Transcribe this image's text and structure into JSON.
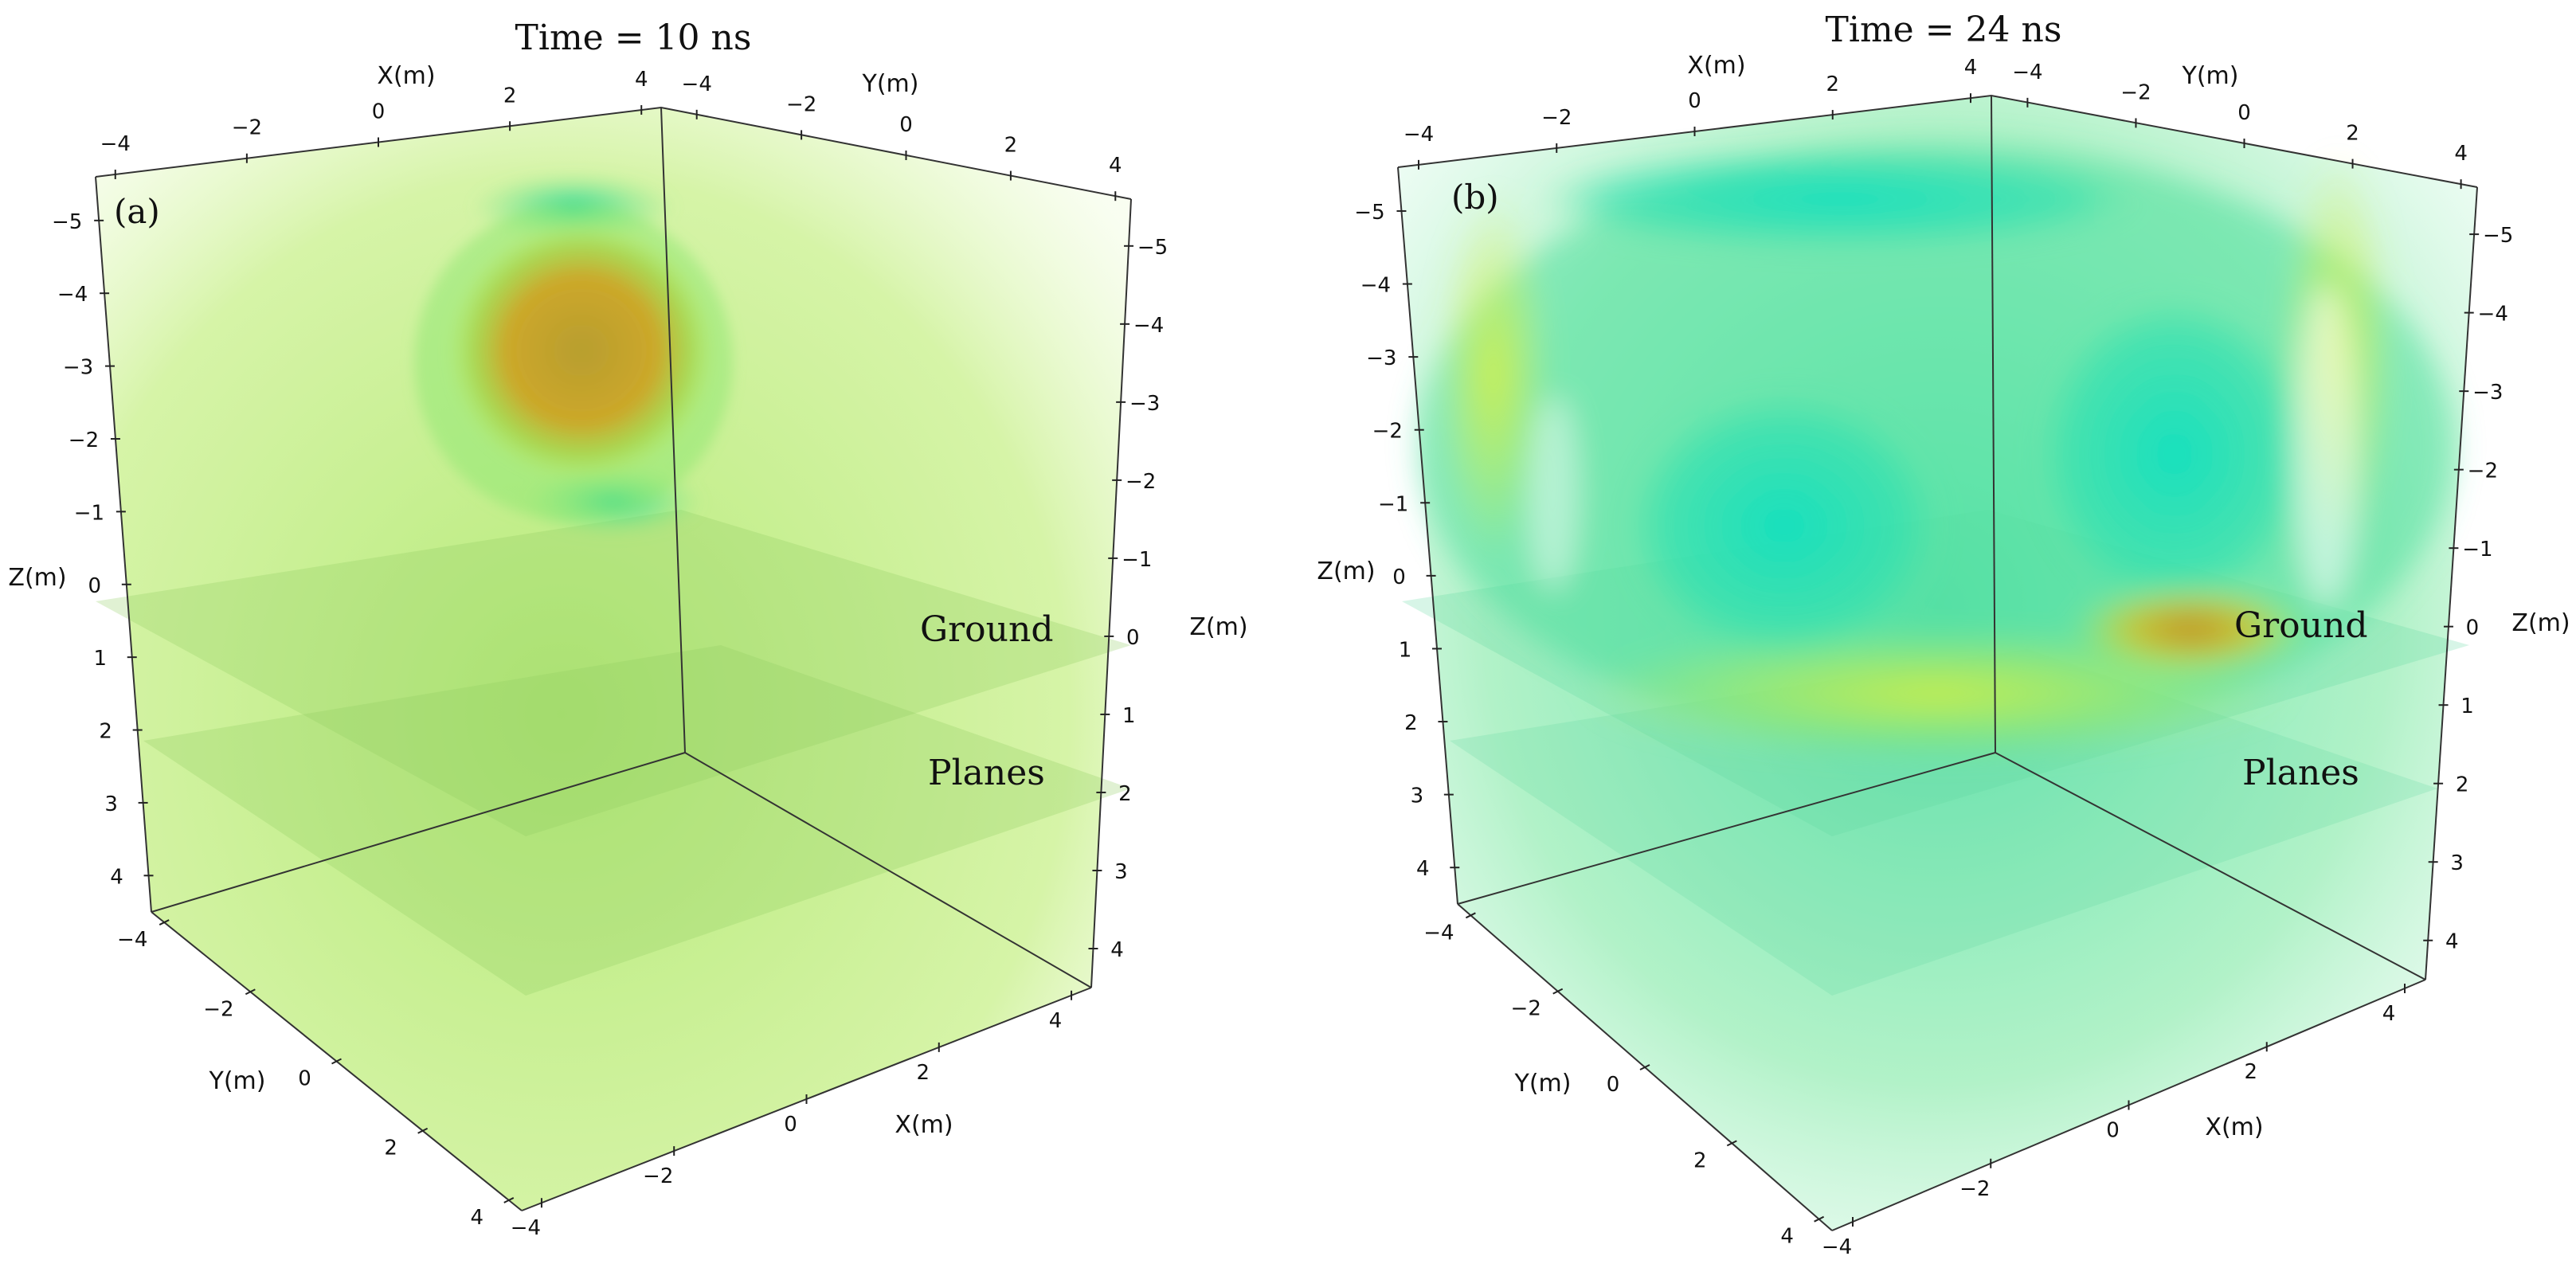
{
  "chart_data": [
    {
      "type": "volume",
      "panel_label": "(a)",
      "title": "Time = 10 ns",
      "axes": {
        "x": {
          "label": "X(m)",
          "ticks": [
            -4,
            -2,
            0,
            2,
            4
          ]
        },
        "y": {
          "label": "Y(m)",
          "ticks": [
            -4,
            -2,
            0,
            2,
            4
          ]
        },
        "z": {
          "label": "Z(m)",
          "ticks_back_left": [
            -5,
            -4,
            -3,
            -2,
            -1,
            0,
            1,
            2,
            3,
            4
          ],
          "ticks_back_right": [
            -5,
            -4,
            -3,
            -2,
            -1,
            0,
            1,
            2,
            3,
            4
          ]
        }
      },
      "annotations": [
        "Ground",
        "Planes"
      ],
      "colors": {
        "background": "#c8f08a",
        "blob_core": "#c8a020",
        "blob_ring": "#2ed8a0"
      }
    },
    {
      "type": "volume",
      "panel_label": "(b)",
      "title": "Time = 24 ns",
      "axes": {
        "x": {
          "label": "X(m)",
          "ticks": [
            -4,
            -2,
            0,
            2,
            4
          ]
        },
        "y": {
          "label": "Y(m)",
          "ticks": [
            -4,
            -2,
            0,
            2,
            4
          ]
        },
        "z": {
          "label": "Z(m)",
          "ticks_back_left": [
            -5,
            -4,
            -3,
            -2,
            -1,
            0,
            1,
            2,
            3,
            4
          ],
          "ticks_back_right": [
            -5,
            -4,
            -3,
            -2,
            -1,
            0,
            1,
            2,
            3,
            4
          ]
        }
      },
      "annotations": [
        "Ground",
        "Planes"
      ],
      "colors": {
        "background": "#c0f5e0",
        "blob_core": "#b8c020",
        "blob_ring": "#10e0b8"
      }
    }
  ]
}
